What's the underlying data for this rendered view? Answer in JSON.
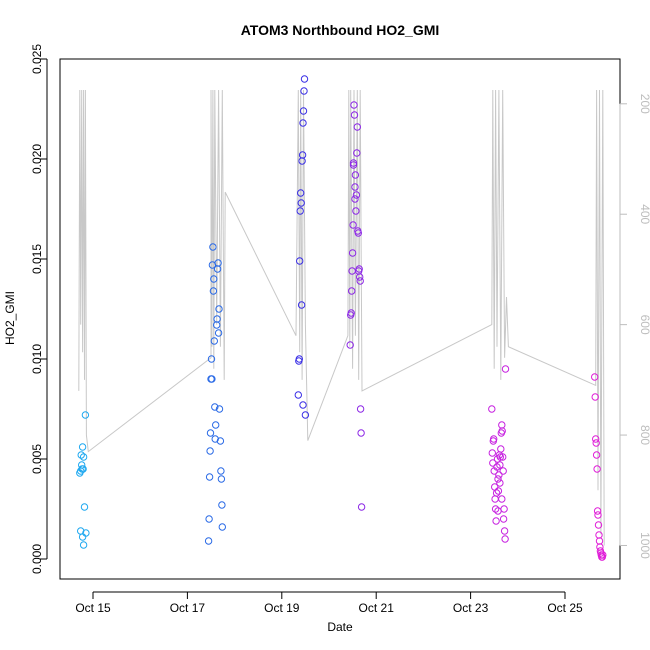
{
  "chart_data": {
    "type": "scatter",
    "title": "ATOM3 Northbound HO2_GMI",
    "xlabel": "Date",
    "ylabel": "HO2_GMI",
    "x_ticks": [
      {
        "day": 15,
        "label": "Oct 15"
      },
      {
        "day": 17,
        "label": "Oct 17"
      },
      {
        "day": 19,
        "label": "Oct 19"
      },
      {
        "day": 21,
        "label": "Oct 21"
      },
      {
        "day": 23,
        "label": "Oct 23"
      },
      {
        "day": 25,
        "label": "Oct 25"
      }
    ],
    "y_ticks": [
      "0.000",
      "0.005",
      "0.010",
      "0.015",
      "0.020",
      "0.025"
    ],
    "y_tick_values": [
      0,
      0.005,
      0.01,
      0.015,
      0.02,
      0.025
    ],
    "ylim": [
      0,
      0.025
    ],
    "xlim_days": [
      14.35,
      26.25
    ],
    "right_axis": {
      "ticks": [
        "200",
        "400",
        "600",
        "800",
        "1000"
      ],
      "tick_values": [
        200,
        400,
        600,
        800,
        1000
      ],
      "range_top_to_bottom": [
        175,
        1010
      ]
    },
    "colors": {
      "flight1": "#1ea8f0",
      "flight2": "#2a6ae6",
      "flight3": "#3a2fe6",
      "flight4": "#8d28e6",
      "flight5": "#c722e0",
      "flight6": "#e01ed8",
      "pressure_line": "#c8c8c8"
    },
    "pressure_profile": [
      [
        14.7,
        720
      ],
      [
        14.72,
        175
      ],
      [
        14.74,
        600
      ],
      [
        14.76,
        175
      ],
      [
        14.78,
        650
      ],
      [
        14.8,
        175
      ],
      [
        14.82,
        700
      ],
      [
        14.84,
        175
      ],
      [
        14.86,
        800
      ],
      [
        14.9,
        830
      ],
      [
        17.5,
        660
      ],
      [
        17.5,
        175
      ],
      [
        17.52,
        640
      ],
      [
        17.54,
        175
      ],
      [
        17.56,
        680
      ],
      [
        17.58,
        175
      ],
      [
        17.62,
        600
      ],
      [
        17.66,
        175
      ],
      [
        17.7,
        640
      ],
      [
        17.74,
        175
      ],
      [
        17.78,
        700
      ],
      [
        17.8,
        360
      ],
      [
        19.3,
        620
      ],
      [
        19.35,
        175
      ],
      [
        19.38,
        650
      ],
      [
        19.4,
        175
      ],
      [
        19.43,
        700
      ],
      [
        19.46,
        175
      ],
      [
        19.5,
        600
      ],
      [
        19.55,
        810
      ],
      [
        20.4,
        620
      ],
      [
        20.42,
        175
      ],
      [
        20.44,
        640
      ],
      [
        20.46,
        175
      ],
      [
        20.5,
        680
      ],
      [
        20.53,
        175
      ],
      [
        20.56,
        620
      ],
      [
        20.6,
        175
      ],
      [
        20.63,
        700
      ],
      [
        20.66,
        175
      ],
      [
        20.7,
        720
      ],
      [
        23.45,
        600
      ],
      [
        23.47,
        175
      ],
      [
        23.5,
        680
      ],
      [
        23.53,
        175
      ],
      [
        23.56,
        640
      ],
      [
        23.6,
        175
      ],
      [
        23.64,
        700
      ],
      [
        23.68,
        175
      ],
      [
        23.72,
        660
      ],
      [
        23.76,
        550
      ],
      [
        23.8,
        640
      ],
      [
        25.65,
        710
      ],
      [
        25.67,
        175
      ],
      [
        25.7,
        900
      ],
      [
        25.73,
        175
      ],
      [
        25.76,
        980
      ],
      [
        25.8,
        175
      ],
      [
        25.83,
        1000
      ]
    ],
    "series": [
      {
        "color_key": "flight1",
        "points": [
          [
            14.72,
            0.0043
          ],
          [
            14.74,
            0.0044
          ],
          [
            14.75,
            0.0052
          ],
          [
            14.76,
            0.0047
          ],
          [
            14.77,
            0.0045
          ],
          [
            14.78,
            0.0056
          ],
          [
            14.79,
            0.0045
          ],
          [
            14.8,
            0.0051
          ],
          [
            14.82,
            0.0026
          ],
          [
            14.84,
            0.0072
          ],
          [
            14.74,
            0.0014
          ],
          [
            14.78,
            0.0011
          ],
          [
            14.85,
            0.0013
          ],
          [
            14.8,
            0.0007
          ]
        ]
      },
      {
        "color_key": "flight2",
        "points": [
          [
            17.45,
            0.0009
          ],
          [
            17.46,
            0.002
          ],
          [
            17.47,
            0.0041
          ],
          [
            17.48,
            0.0054
          ],
          [
            17.49,
            0.0063
          ],
          [
            17.5,
            0.009
          ],
          [
            17.51,
            0.01
          ],
          [
            17.52,
            0.009
          ],
          [
            17.53,
            0.0147
          ],
          [
            17.54,
            0.0156
          ],
          [
            17.55,
            0.0134
          ],
          [
            17.56,
            0.014
          ],
          [
            17.57,
            0.0109
          ],
          [
            17.58,
            0.0076
          ],
          [
            17.59,
            0.006
          ],
          [
            17.6,
            0.0067
          ],
          [
            17.62,
            0.0117
          ],
          [
            17.63,
            0.012
          ],
          [
            17.64,
            0.0145
          ],
          [
            17.65,
            0.0148
          ],
          [
            17.66,
            0.0113
          ],
          [
            17.67,
            0.0125
          ],
          [
            17.68,
            0.0075
          ],
          [
            17.7,
            0.0059
          ],
          [
            17.71,
            0.0044
          ],
          [
            17.72,
            0.004
          ],
          [
            17.73,
            0.0027
          ],
          [
            17.74,
            0.0016
          ]
        ]
      },
      {
        "color_key": "flight3",
        "points": [
          [
            19.35,
            0.0082
          ],
          [
            19.36,
            0.0099
          ],
          [
            19.37,
            0.01
          ],
          [
            19.38,
            0.0149
          ],
          [
            19.39,
            0.0174
          ],
          [
            19.4,
            0.0183
          ],
          [
            19.41,
            0.0178
          ],
          [
            19.42,
            0.0127
          ],
          [
            19.43,
            0.0199
          ],
          [
            19.44,
            0.0202
          ],
          [
            19.45,
            0.0218
          ],
          [
            19.46,
            0.0224
          ],
          [
            19.47,
            0.0234
          ],
          [
            19.48,
            0.024
          ],
          [
            19.45,
            0.0077
          ],
          [
            19.5,
            0.0072
          ]
        ]
      },
      {
        "color_key": "flight4",
        "points": [
          [
            20.45,
            0.0107
          ],
          [
            20.46,
            0.0122
          ],
          [
            20.47,
            0.0123
          ],
          [
            20.48,
            0.0134
          ],
          [
            20.49,
            0.0144
          ],
          [
            20.5,
            0.0153
          ],
          [
            20.51,
            0.0167
          ],
          [
            20.52,
            0.0198
          ],
          [
            20.53,
            0.0227
          ],
          [
            20.54,
            0.0222
          ],
          [
            20.55,
            0.0186
          ],
          [
            20.56,
            0.0192
          ],
          [
            20.57,
            0.0174
          ],
          [
            20.58,
            0.0182
          ],
          [
            20.59,
            0.0203
          ],
          [
            20.6,
            0.0216
          ],
          [
            20.61,
            0.0164
          ],
          [
            20.62,
            0.0163
          ],
          [
            20.63,
            0.0144
          ],
          [
            20.64,
            0.0145
          ],
          [
            20.65,
            0.0141
          ],
          [
            20.66,
            0.0139
          ],
          [
            20.67,
            0.0075
          ],
          [
            20.68,
            0.0063
          ],
          [
            20.69,
            0.0026
          ],
          [
            20.52,
            0.0197
          ],
          [
            20.55,
            0.018
          ]
        ]
      },
      {
        "color_key": "flight5",
        "points": [
          [
            23.45,
            0.0075
          ],
          [
            23.46,
            0.0053
          ],
          [
            23.47,
            0.0048
          ],
          [
            23.48,
            0.0059
          ],
          [
            23.49,
            0.006
          ],
          [
            23.5,
            0.0044
          ],
          [
            23.51,
            0.0036
          ],
          [
            23.52,
            0.003
          ],
          [
            23.53,
            0.0025
          ],
          [
            23.54,
            0.0019
          ],
          [
            23.55,
            0.0033
          ],
          [
            23.56,
            0.0046
          ],
          [
            23.57,
            0.005
          ],
          [
            23.58,
            0.004
          ],
          [
            23.59,
            0.0034
          ],
          [
            23.6,
            0.0042
          ],
          [
            23.61,
            0.0052
          ],
          [
            23.62,
            0.0047
          ],
          [
            23.63,
            0.0051
          ],
          [
            23.64,
            0.0055
          ],
          [
            23.65,
            0.0063
          ],
          [
            23.66,
            0.0067
          ],
          [
            23.67,
            0.0064
          ],
          [
            23.68,
            0.0051
          ],
          [
            23.69,
            0.0044
          ],
          [
            23.7,
            0.002
          ],
          [
            23.71,
            0.0025
          ],
          [
            23.72,
            0.0014
          ],
          [
            23.73,
            0.001
          ],
          [
            23.74,
            0.0095
          ],
          [
            23.58,
            0.0024
          ],
          [
            23.62,
            0.0038
          ],
          [
            23.66,
            0.003
          ]
        ]
      },
      {
        "color_key": "flight6",
        "points": [
          [
            25.63,
            0.0091
          ],
          [
            25.64,
            0.0081
          ],
          [
            25.65,
            0.006
          ],
          [
            25.66,
            0.0058
          ],
          [
            25.67,
            0.0052
          ],
          [
            25.68,
            0.0045
          ],
          [
            25.69,
            0.0024
          ],
          [
            25.7,
            0.0022
          ],
          [
            25.71,
            0.0017
          ],
          [
            25.72,
            0.0012
          ],
          [
            25.73,
            0.0009
          ],
          [
            25.74,
            0.0006
          ],
          [
            25.75,
            0.0004
          ],
          [
            25.76,
            0.0003
          ],
          [
            25.77,
            0.0002
          ],
          [
            25.78,
            0.0001
          ],
          [
            25.79,
            0.0001
          ],
          [
            25.8,
            0.0002
          ]
        ]
      }
    ]
  }
}
